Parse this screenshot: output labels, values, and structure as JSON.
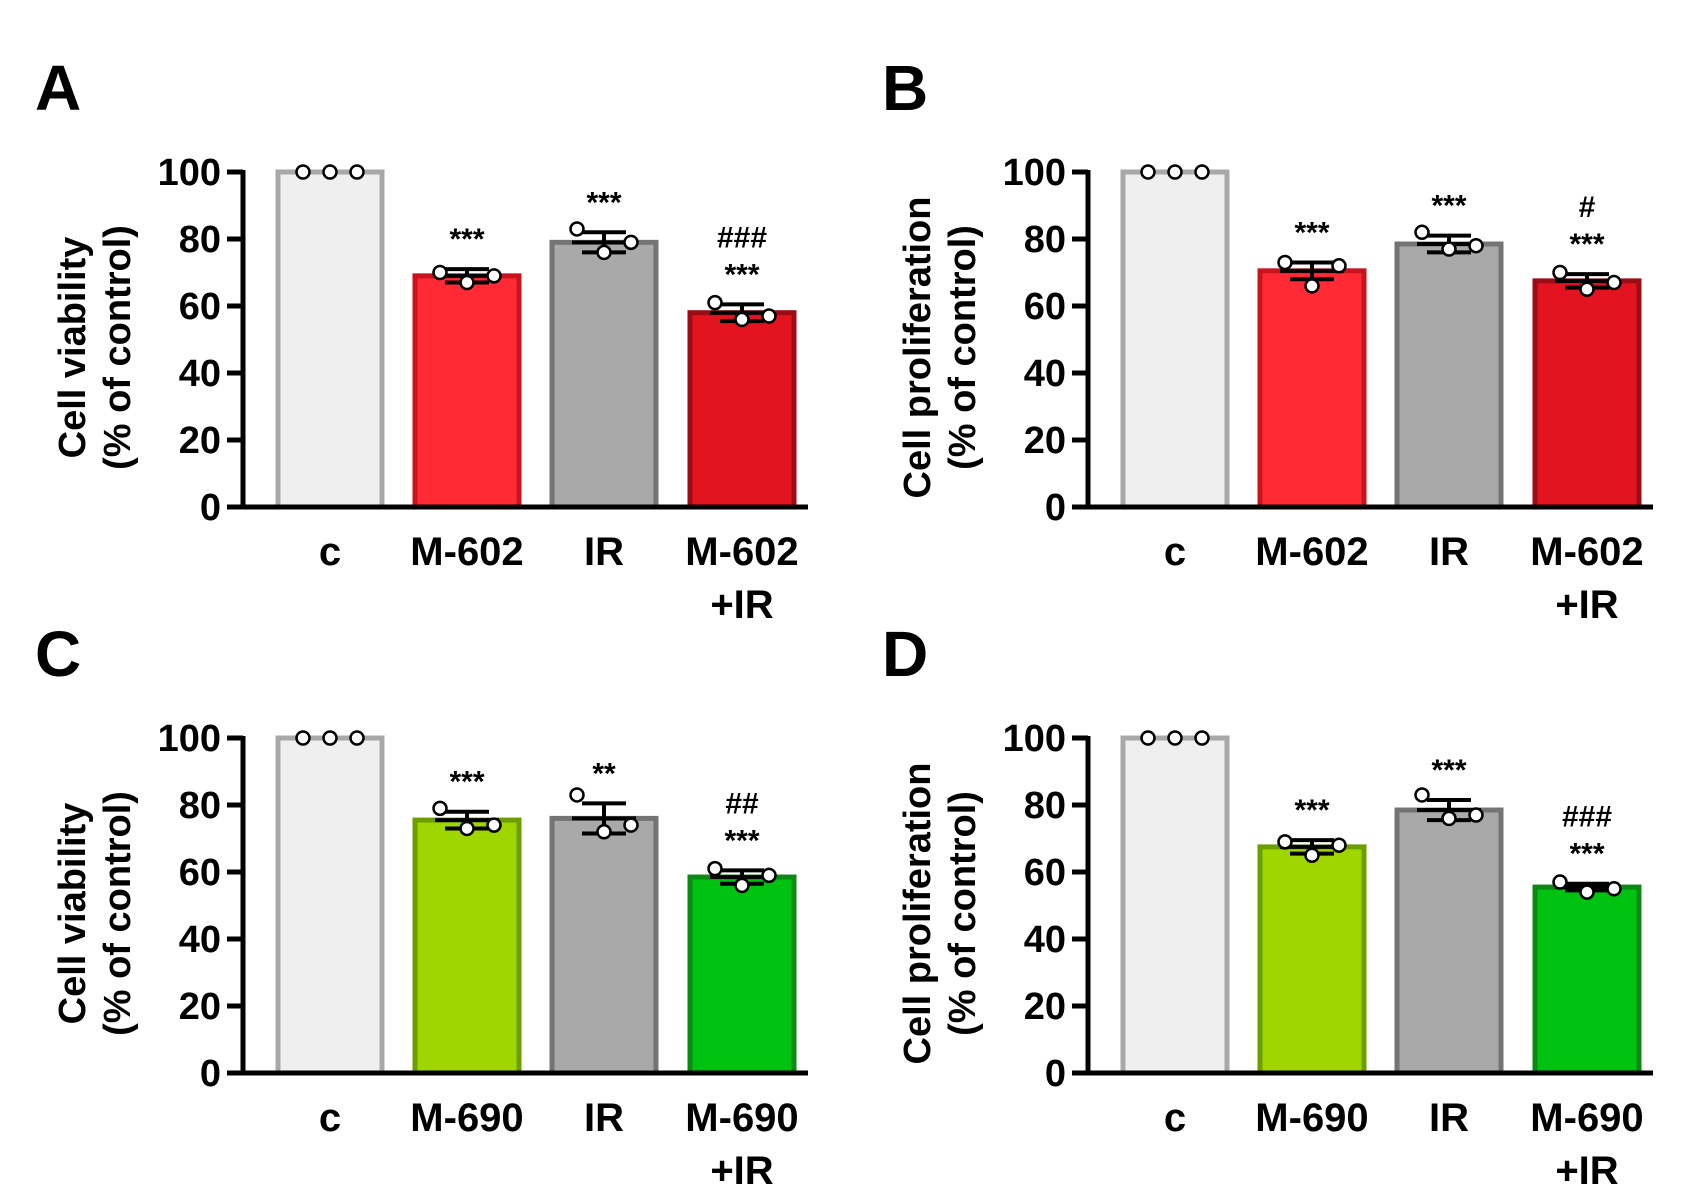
{
  "colors": {
    "control": "#efefef",
    "control_edge": "#a8a8a8",
    "ir": "#a9a9a9",
    "ir_edge": "#747474",
    "m602": "#ff2a33",
    "m602_edge": "#c9141e",
    "m602_ir": "#e3141f",
    "m602_ir_edge": "#9c0c14",
    "m690": "#9fd600",
    "m690_edge": "#6c9e00",
    "m690_ir": "#00c210",
    "m690_ir_edge": "#0a8a14"
  },
  "chart_data": [
    {
      "type": "bar",
      "panel": "A",
      "ylabel": "Cell viability",
      "ylabel2": "(% of control)",
      "ylim": [
        0,
        100
      ],
      "yticks": [
        0,
        20,
        40,
        60,
        80,
        100
      ],
      "categories": [
        "c",
        "M-602",
        "IR",
        "M-602\n+IR"
      ],
      "category_lines": [
        [
          "c"
        ],
        [
          "M-602"
        ],
        [
          "IR"
        ],
        [
          "M-602",
          "+IR"
        ]
      ],
      "values": [
        100,
        69,
        79,
        58
      ],
      "errors": [
        0,
        2,
        3,
        2.5
      ],
      "points": [
        [
          100,
          100,
          100
        ],
        [
          70,
          67,
          69
        ],
        [
          83,
          76,
          79
        ],
        [
          61,
          56,
          57
        ]
      ],
      "significance": [
        [],
        [
          "***"
        ],
        [
          "***"
        ],
        [
          "###",
          "***"
        ]
      ],
      "bar_colors": [
        "control",
        "m602",
        "ir",
        "m602_ir"
      ]
    },
    {
      "type": "bar",
      "panel": "B",
      "ylabel": "Cell proliferation",
      "ylabel2": "(% of control)",
      "ylim": [
        0,
        100
      ],
      "yticks": [
        0,
        20,
        40,
        60,
        80,
        100
      ],
      "categories": [
        "c",
        "M-602",
        "IR",
        "M-602\n+IR"
      ],
      "category_lines": [
        [
          "c"
        ],
        [
          "M-602"
        ],
        [
          "IR"
        ],
        [
          "M-602",
          "+IR"
        ]
      ],
      "values": [
        100,
        70.5,
        78.5,
        67.5
      ],
      "errors": [
        0,
        2.5,
        2.5,
        2
      ],
      "points": [
        [
          100,
          100,
          100
        ],
        [
          73,
          66,
          72
        ],
        [
          82,
          77,
          78
        ],
        [
          70,
          65,
          67
        ]
      ],
      "significance": [
        [],
        [
          "***"
        ],
        [
          "***"
        ],
        [
          "#",
          "***"
        ]
      ],
      "bar_colors": [
        "control",
        "m602",
        "ir",
        "m602_ir"
      ]
    },
    {
      "type": "bar",
      "panel": "C",
      "ylabel": "Cell viability",
      "ylabel2": "(% of control)",
      "ylim": [
        0,
        100
      ],
      "yticks": [
        0,
        20,
        40,
        60,
        80,
        100
      ],
      "categories": [
        "c",
        "M-690",
        "IR",
        "M-690\n+IR"
      ],
      "category_lines": [
        [
          "c"
        ],
        [
          "M-690"
        ],
        [
          "IR"
        ],
        [
          "M-690",
          "+IR"
        ]
      ],
      "values": [
        100,
        75.5,
        76,
        58.5
      ],
      "errors": [
        0,
        2.5,
        4.5,
        2
      ],
      "points": [
        [
          100,
          100,
          100
        ],
        [
          79,
          73,
          74
        ],
        [
          83,
          72,
          74
        ],
        [
          61,
          56,
          59
        ]
      ],
      "significance": [
        [],
        [
          "***"
        ],
        [
          "**"
        ],
        [
          "##",
          "***"
        ]
      ],
      "bar_colors": [
        "control",
        "m690",
        "ir",
        "m690_ir"
      ]
    },
    {
      "type": "bar",
      "panel": "D",
      "ylabel": "Cell proliferation",
      "ylabel2": "(% of control)",
      "ylim": [
        0,
        100
      ],
      "yticks": [
        0,
        20,
        40,
        60,
        80,
        100
      ],
      "categories": [
        "c",
        "M-690",
        "IR",
        "M-690\n+IR"
      ],
      "category_lines": [
        [
          "c"
        ],
        [
          "M-690"
        ],
        [
          "IR"
        ],
        [
          "M-690",
          "+IR"
        ]
      ],
      "values": [
        100,
        67.5,
        78.5,
        55.5
      ],
      "errors": [
        0,
        2,
        3,
        1
      ],
      "points": [
        [
          100,
          100,
          100
        ],
        [
          69,
          65,
          68
        ],
        [
          83,
          76,
          77
        ],
        [
          57,
          54,
          55
        ]
      ],
      "significance": [
        [],
        [
          "***"
        ],
        [
          "***"
        ],
        [
          "###",
          "***"
        ]
      ],
      "bar_colors": [
        "control",
        "m690",
        "ir",
        "m690_ir"
      ]
    }
  ]
}
